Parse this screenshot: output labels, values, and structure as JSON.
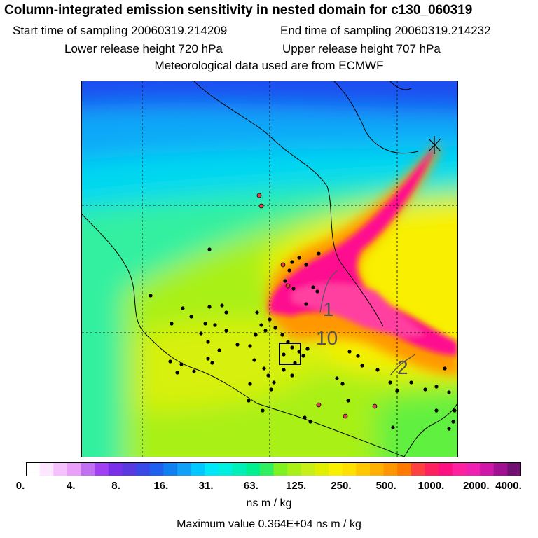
{
  "header": {
    "title": "Column-integrated emission sensitivity in nested domain for c130_060319",
    "start": "Start time of sampling 20060319.214209",
    "end": "End time of sampling 20060319.214232",
    "lower": "Lower release height  720 hPa",
    "upper": "Upper release height  707 hPa",
    "met": "Meteorological data used are from ECMWF"
  },
  "colorbar": {
    "ticks": [
      "0.",
      "4.",
      "8.",
      "16.",
      "31.",
      "63.",
      "125.",
      "250.",
      "500.",
      "1000.",
      "2000.",
      "4000."
    ],
    "colors": [
      "#ffffff",
      "#fde6ff",
      "#f6c0ff",
      "#e8a0f8",
      "#c070f0",
      "#a040f0",
      "#7a30e8",
      "#5a3ae0",
      "#3a4ae8",
      "#2060f0",
      "#1080f0",
      "#10a0f8",
      "#00c8ff",
      "#00e8f8",
      "#00f0e0",
      "#00f0b8",
      "#00f090",
      "#30f060",
      "#80f020",
      "#a8f018",
      "#c8f018",
      "#e0f000",
      "#f8f000",
      "#ffe000",
      "#ffc800",
      "#ffb000",
      "#ff9800",
      "#ff7800",
      "#ff4040",
      "#ff2060",
      "#ff1080",
      "#ff20a0",
      "#f020b0",
      "#d018a8",
      "#a01090",
      "#701070"
    ],
    "units": "ns m / kg",
    "max_text": "Maximum value  0.364E+04 ns m / kg"
  },
  "map": {
    "contour_labels": [
      "1",
      "10",
      "2"
    ],
    "colors": {
      "north": "#1e4cf0",
      "cyan": "#00d8f0",
      "green": "#30f080",
      "lime": "#a8f018",
      "yellow": "#f8f000",
      "orange": "#ffa000",
      "magenta": "#ff1090"
    }
  },
  "chart_data": {
    "type": "heatmap",
    "title": "Column-integrated emission sensitivity in nested domain for c130_060319",
    "colorbar_ticks": [
      0,
      4,
      8,
      16,
      31,
      63,
      125,
      250,
      500,
      1000,
      2000,
      4000
    ],
    "colorbar_units": "ns m / kg",
    "max_value": 3640,
    "contour_levels": [
      1,
      10,
      2
    ],
    "grid": true
  }
}
